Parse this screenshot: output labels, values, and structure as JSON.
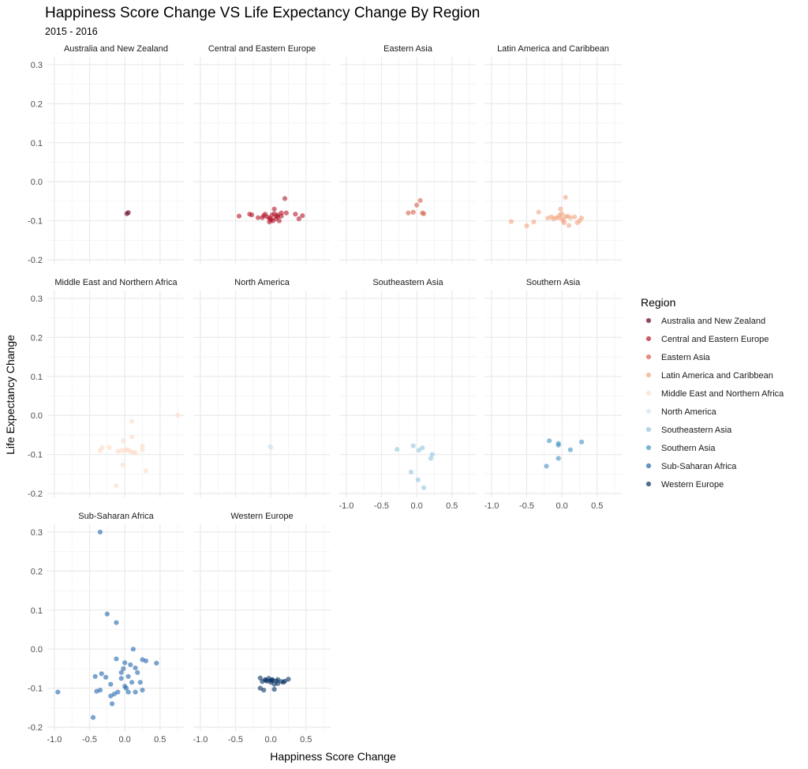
{
  "chart_data": {
    "type": "scatter",
    "title": "Happiness Score Change VS Life Expectancy Change By Region",
    "subtitle": "2015 - 2016",
    "xlabel": "Happiness Score Change",
    "ylabel": "Life Expectancy Change",
    "xlim": [
      -1.1,
      0.85
    ],
    "ylim": [
      -0.21,
      0.32
    ],
    "x_ticks": [
      -1.0,
      -0.5,
      0.0,
      0.5
    ],
    "x_tick_labels": [
      "-1.0",
      "-0.5",
      "0.0",
      "0.5"
    ],
    "y_ticks": [
      -0.2,
      -0.1,
      0.0,
      0.1,
      0.2,
      0.3
    ],
    "y_tick_labels": [
      "-0.2",
      "-0.1",
      "0.0",
      "0.1",
      "0.2",
      "0.3"
    ],
    "grid": true,
    "legend": {
      "title": "Region",
      "placement": "right"
    },
    "facets": [
      {
        "name": "Australia and New Zealand",
        "color": "#67001f",
        "points": [
          [
            0.03,
            -0.082
          ],
          [
            0.05,
            -0.079
          ]
        ]
      },
      {
        "name": "Central and Eastern Europe",
        "color": "#b2182b",
        "points": [
          [
            -0.45,
            -0.088
          ],
          [
            -0.3,
            -0.083
          ],
          [
            -0.27,
            -0.085
          ],
          [
            -0.18,
            -0.092
          ],
          [
            -0.08,
            -0.083
          ],
          [
            -0.05,
            -0.09
          ],
          [
            -0.02,
            -0.093
          ],
          [
            0.0,
            -0.098
          ],
          [
            0.02,
            -0.085
          ],
          [
            0.05,
            -0.07
          ],
          [
            0.07,
            -0.095
          ],
          [
            0.1,
            -0.09
          ],
          [
            0.12,
            -0.1
          ],
          [
            0.15,
            -0.08
          ],
          [
            0.2,
            -0.043
          ],
          [
            0.22,
            -0.08
          ],
          [
            0.35,
            -0.083
          ],
          [
            0.4,
            -0.095
          ],
          [
            0.45,
            -0.087
          ],
          [
            -0.02,
            -0.103
          ],
          [
            0.05,
            -0.082
          ],
          [
            0.08,
            -0.088
          ],
          [
            -0.1,
            -0.087
          ],
          [
            0.0,
            -0.095
          ],
          [
            0.1,
            -0.085
          ],
          [
            0.03,
            -0.1
          ],
          [
            -0.12,
            -0.092
          ],
          [
            0.15,
            -0.088
          ]
        ]
      },
      {
        "name": "Eastern Asia",
        "color": "#d6604d",
        "points": [
          [
            -0.12,
            -0.08
          ],
          [
            -0.05,
            -0.078
          ],
          [
            0.0,
            -0.06
          ],
          [
            0.05,
            -0.048
          ],
          [
            0.08,
            -0.08
          ],
          [
            0.1,
            -0.082
          ]
        ]
      },
      {
        "name": "Latin America and Caribbean",
        "color": "#f4a582",
        "points": [
          [
            -0.72,
            -0.102
          ],
          [
            -0.5,
            -0.113
          ],
          [
            -0.4,
            -0.103
          ],
          [
            -0.33,
            -0.078
          ],
          [
            -0.2,
            -0.093
          ],
          [
            -0.12,
            -0.095
          ],
          [
            -0.05,
            -0.092
          ],
          [
            -0.03,
            -0.085
          ],
          [
            -0.02,
            -0.07
          ],
          [
            0.0,
            -0.082
          ],
          [
            0.02,
            -0.1
          ],
          [
            0.03,
            -0.105
          ],
          [
            0.05,
            -0.04
          ],
          [
            0.05,
            -0.09
          ],
          [
            0.08,
            -0.088
          ],
          [
            0.1,
            -0.112
          ],
          [
            0.12,
            -0.092
          ],
          [
            0.18,
            -0.09
          ],
          [
            0.22,
            -0.105
          ],
          [
            0.25,
            -0.1
          ],
          [
            0.28,
            -0.093
          ],
          [
            -0.08,
            -0.092
          ],
          [
            0.0,
            -0.095
          ],
          [
            -0.15,
            -0.09
          ]
        ]
      },
      {
        "name": "Middle East and Northern Africa",
        "color": "#fddbc7",
        "points": [
          [
            -0.35,
            -0.09
          ],
          [
            -0.32,
            -0.082
          ],
          [
            -0.22,
            -0.082
          ],
          [
            -0.1,
            -0.092
          ],
          [
            -0.05,
            -0.09
          ],
          [
            -0.02,
            -0.065
          ],
          [
            0.0,
            -0.09
          ],
          [
            0.02,
            -0.088
          ],
          [
            0.05,
            -0.088
          ],
          [
            0.1,
            -0.015
          ],
          [
            0.1,
            -0.055
          ],
          [
            0.12,
            -0.095
          ],
          [
            0.15,
            -0.095
          ],
          [
            0.25,
            -0.088
          ],
          [
            0.25,
            -0.078
          ],
          [
            0.3,
            -0.142
          ],
          [
            0.75,
            0.0
          ],
          [
            -0.03,
            -0.127
          ],
          [
            -0.12,
            -0.18
          ],
          [
            0.08,
            -0.092
          ]
        ]
      },
      {
        "name": "North America",
        "color": "#d1e5f0",
        "points": [
          [
            -0.01,
            -0.08
          ],
          [
            0.0,
            -0.082
          ]
        ]
      },
      {
        "name": "Southeastern Asia",
        "color": "#92c5de",
        "points": [
          [
            -0.28,
            -0.087
          ],
          [
            -0.05,
            -0.078
          ],
          [
            0.03,
            -0.089
          ],
          [
            0.08,
            -0.083
          ],
          [
            0.22,
            -0.1
          ],
          [
            0.2,
            -0.11
          ],
          [
            -0.08,
            -0.145
          ],
          [
            0.02,
            -0.165
          ],
          [
            0.1,
            -0.185
          ]
        ]
      },
      {
        "name": "Southern Asia",
        "color": "#4393c3",
        "points": [
          [
            -0.18,
            -0.065
          ],
          [
            -0.22,
            -0.13
          ],
          [
            -0.05,
            -0.072
          ],
          [
            -0.05,
            -0.076
          ],
          [
            -0.05,
            -0.11
          ],
          [
            0.12,
            -0.088
          ],
          [
            0.28,
            -0.068
          ]
        ]
      },
      {
        "name": "Sub-Saharan Africa",
        "color": "#2166ac",
        "points": [
          [
            -0.35,
            0.3
          ],
          [
            -0.25,
            0.09
          ],
          [
            -0.12,
            0.068
          ],
          [
            -0.95,
            -0.11
          ],
          [
            -0.45,
            -0.175
          ],
          [
            -0.42,
            -0.07
          ],
          [
            -0.4,
            -0.108
          ],
          [
            -0.35,
            -0.105
          ],
          [
            -0.33,
            -0.063
          ],
          [
            -0.27,
            -0.072
          ],
          [
            -0.2,
            -0.09
          ],
          [
            -0.18,
            -0.14
          ],
          [
            -0.15,
            -0.115
          ],
          [
            -0.12,
            -0.025
          ],
          [
            -0.1,
            -0.11
          ],
          [
            -0.05,
            -0.06
          ],
          [
            -0.02,
            -0.05
          ],
          [
            0.0,
            -0.035
          ],
          [
            0.0,
            -0.095
          ],
          [
            0.02,
            -0.1
          ],
          [
            0.05,
            -0.11
          ],
          [
            0.08,
            -0.04
          ],
          [
            0.1,
            -0.085
          ],
          [
            0.12,
            0.0
          ],
          [
            0.15,
            -0.048
          ],
          [
            0.15,
            -0.11
          ],
          [
            0.18,
            -0.06
          ],
          [
            0.22,
            -0.085
          ],
          [
            0.25,
            -0.027
          ],
          [
            0.25,
            -0.105
          ],
          [
            0.3,
            -0.03
          ],
          [
            0.45,
            -0.036
          ],
          [
            -0.05,
            -0.075
          ],
          [
            0.05,
            -0.07
          ],
          [
            -0.2,
            -0.12
          ]
        ]
      },
      {
        "name": "Western Europe",
        "color": "#053061",
        "points": [
          [
            -0.15,
            -0.074
          ],
          [
            -0.15,
            -0.1
          ],
          [
            -0.12,
            -0.083
          ],
          [
            -0.1,
            -0.105
          ],
          [
            -0.08,
            -0.078
          ],
          [
            -0.05,
            -0.082
          ],
          [
            -0.03,
            -0.075
          ],
          [
            0.0,
            -0.08
          ],
          [
            0.0,
            -0.085
          ],
          [
            0.02,
            -0.078
          ],
          [
            0.05,
            -0.09
          ],
          [
            0.05,
            -0.103
          ],
          [
            0.08,
            -0.082
          ],
          [
            0.1,
            -0.078
          ],
          [
            0.15,
            -0.083
          ],
          [
            0.18,
            -0.085
          ],
          [
            0.2,
            -0.082
          ],
          [
            0.25,
            -0.077
          ],
          [
            -0.07,
            -0.08
          ],
          [
            0.03,
            -0.08
          ],
          [
            0.1,
            -0.088
          ]
        ]
      }
    ]
  }
}
